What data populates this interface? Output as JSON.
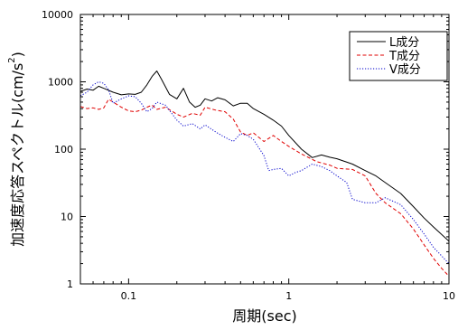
{
  "chart_data": {
    "type": "line",
    "title": "",
    "xlabel": "周期(sec)",
    "ylabel": "加速度応答スペクトル(cm/s²)",
    "ylabel_parts": {
      "base": "加速度応答スペクトル(cm/s",
      "sup": "2",
      "close": ")"
    },
    "xscale": "log",
    "yscale": "log",
    "xlim": [
      0.05,
      10
    ],
    "ylim": [
      1,
      10000
    ],
    "grid": false,
    "legend_position": "top-right",
    "x_tick_labels": [
      "0.1",
      "1",
      "10"
    ],
    "y_tick_labels": [
      "1",
      "10",
      "100",
      "1000",
      "10000"
    ],
    "series": [
      {
        "name": "L成分",
        "color": "#000000",
        "style": "solid",
        "x": [
          0.05,
          0.055,
          0.06,
          0.065,
          0.07,
          0.08,
          0.09,
          0.1,
          0.11,
          0.12,
          0.13,
          0.14,
          0.15,
          0.16,
          0.18,
          0.2,
          0.22,
          0.24,
          0.26,
          0.28,
          0.3,
          0.33,
          0.36,
          0.4,
          0.45,
          0.5,
          0.55,
          0.6,
          0.7,
          0.8,
          0.9,
          1.0,
          1.2,
          1.4,
          1.6,
          1.8,
          2.0,
          2.5,
          3.0,
          3.5,
          4.0,
          5.0,
          6.0,
          7.0,
          8.0,
          10.0
        ],
        "y": [
          720,
          780,
          750,
          860,
          800,
          700,
          640,
          660,
          650,
          700,
          900,
          1200,
          1450,
          1100,
          650,
          560,
          800,
          500,
          420,
          450,
          560,
          520,
          580,
          540,
          440,
          480,
          480,
          400,
          330,
          270,
          220,
          160,
          100,
          75,
          82,
          76,
          72,
          60,
          48,
          40,
          32,
          22,
          14,
          9.5,
          7,
          4.3
        ]
      },
      {
        "name": "T成分",
        "color": "#e00000",
        "style": "dashed",
        "x": [
          0.05,
          0.055,
          0.06,
          0.065,
          0.07,
          0.075,
          0.08,
          0.09,
          0.1,
          0.11,
          0.12,
          0.13,
          0.14,
          0.15,
          0.17,
          0.2,
          0.22,
          0.25,
          0.28,
          0.3,
          0.35,
          0.4,
          0.45,
          0.5,
          0.55,
          0.6,
          0.7,
          0.8,
          0.9,
          1.0,
          1.2,
          1.5,
          1.8,
          2.0,
          2.5,
          3.0,
          3.5,
          4.0,
          5.0,
          6.0,
          7.0,
          8.0,
          9.0,
          10.0
        ],
        "y": [
          430,
          400,
          410,
          390,
          410,
          550,
          500,
          420,
          370,
          360,
          380,
          420,
          450,
          390,
          420,
          330,
          300,
          340,
          320,
          420,
          380,
          360,
          280,
          180,
          160,
          175,
          130,
          160,
          130,
          110,
          85,
          65,
          58,
          52,
          50,
          40,
          22,
          16,
          11,
          6.5,
          3.8,
          2.4,
          1.7,
          1.3
        ]
      },
      {
        "name": "V成分",
        "color": "#0000cc",
        "style": "dotted",
        "x": [
          0.05,
          0.055,
          0.06,
          0.065,
          0.07,
          0.075,
          0.08,
          0.09,
          0.1,
          0.11,
          0.12,
          0.13,
          0.14,
          0.15,
          0.17,
          0.2,
          0.22,
          0.25,
          0.28,
          0.3,
          0.35,
          0.4,
          0.45,
          0.5,
          0.55,
          0.6,
          0.7,
          0.75,
          0.8,
          0.9,
          1.0,
          1.1,
          1.2,
          1.4,
          1.6,
          1.8,
          2.0,
          2.3,
          2.5,
          3.0,
          3.5,
          4.0,
          5.0,
          6.0,
          7.0,
          8.0,
          10.0
        ],
        "y": [
          620,
          700,
          900,
          1000,
          950,
          760,
          480,
          560,
          620,
          600,
          480,
          360,
          400,
          500,
          450,
          270,
          220,
          240,
          200,
          230,
          180,
          150,
          130,
          170,
          160,
          140,
          80,
          48,
          50,
          52,
          40,
          45,
          48,
          60,
          55,
          48,
          40,
          32,
          18,
          16,
          16,
          19,
          15,
          9,
          5.5,
          3.5,
          2.0
        ]
      }
    ]
  }
}
